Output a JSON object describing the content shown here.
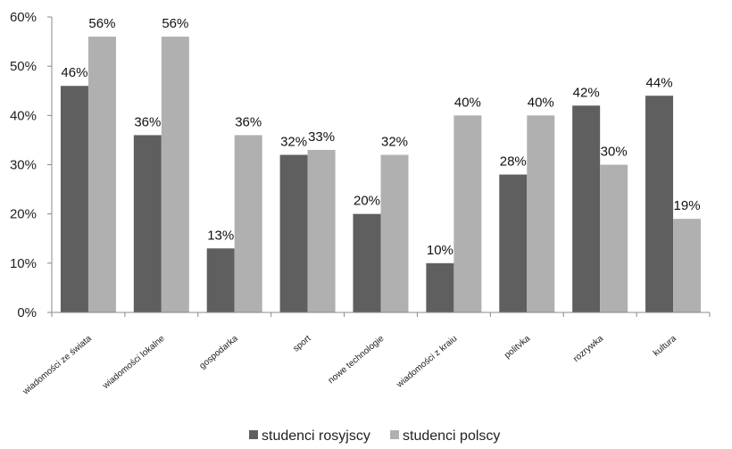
{
  "chart_data": {
    "type": "bar",
    "categories": [
      "wiadomości ze świata",
      "wiadomości lokalne",
      "gospodarka",
      "sport",
      "nowe technologie",
      "wiadomości z kraiu",
      "politvka",
      "rozrywka",
      "kultura"
    ],
    "series": [
      {
        "name": "studenci rosyjscy",
        "values": [
          46,
          36,
          13,
          32,
          20,
          10,
          28,
          42,
          44
        ],
        "labels": [
          "46%",
          "36%",
          "13%",
          "32%",
          "20%",
          "10%",
          "28%",
          "42%",
          "44%"
        ],
        "color": "#5f5f5f"
      },
      {
        "name": "studenci polscy",
        "values": [
          56,
          56,
          36,
          33,
          32,
          40,
          40,
          30,
          19
        ],
        "labels": [
          "56%",
          "56%",
          "36%",
          "33%",
          "32%",
          "40%",
          "40%",
          "30%",
          "19%"
        ],
        "color": "#b0b0b0"
      }
    ],
    "ylim": [
      0,
      60
    ],
    "yticks": [
      0,
      10,
      20,
      30,
      40,
      50,
      60
    ],
    "ytick_labels": [
      "0%",
      "10%",
      "20%",
      "30%",
      "40%",
      "50%",
      "60%"
    ],
    "legend_position": "bottom",
    "grid": false
  }
}
